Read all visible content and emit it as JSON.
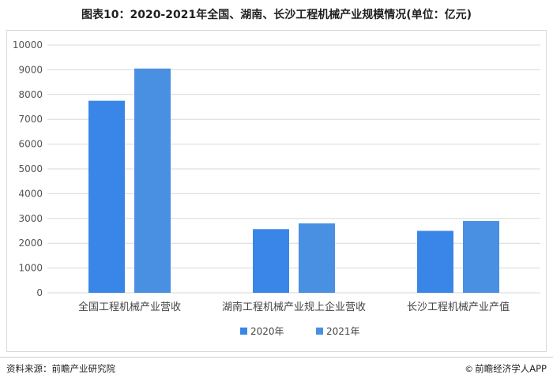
{
  "title": "图表10：2020-2021年全国、湖南、长沙工程机械产业规模情况(单位：亿元)",
  "footer": {
    "source": "资料来源：前瞻产业研究院",
    "brand_icon": "©",
    "brand": "前瞻经济学人APP"
  },
  "colors": {
    "series_2020": "#3a86e8",
    "series_2021": "#4a90e2",
    "grid": "#d9d9d9",
    "axis_text": "#555555"
  },
  "chart_data": {
    "type": "bar",
    "title": "图表10：2020-2021年全国、湖南、长沙工程机械产业规模情况(单位：亿元)",
    "categories": [
      "全国工程机械产业营收",
      "湖南工程机械产业规上企业营收",
      "长沙工程机械产业产值"
    ],
    "series": [
      {
        "name": "2020年",
        "values": [
          7750,
          2570,
          2500
        ]
      },
      {
        "name": "2021年",
        "values": [
          9050,
          2800,
          2900
        ]
      }
    ],
    "ylim": [
      0,
      10000
    ],
    "yticks": [
      0,
      1000,
      2000,
      3000,
      4000,
      5000,
      6000,
      7000,
      8000,
      9000,
      10000
    ],
    "grid": true,
    "legend": "bottom-center"
  }
}
